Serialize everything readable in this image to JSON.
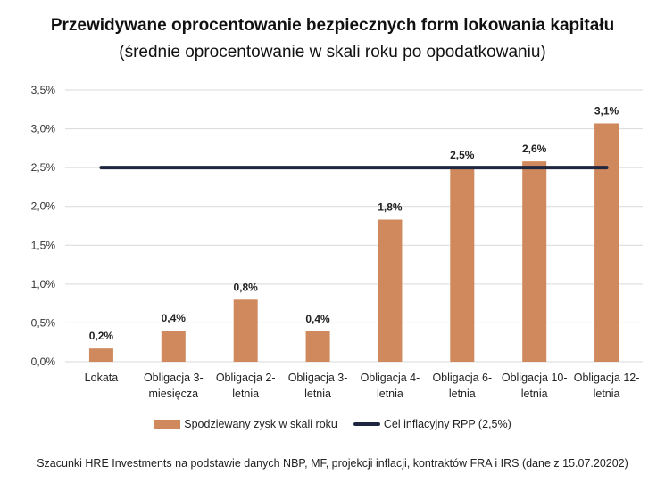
{
  "chart_data": {
    "type": "bar",
    "title": "Przewidywane oprocentowanie bezpiecznych form lokowania kapitału",
    "subtitle": "(średnie oprocentowanie w skali roku po opodatkowaniu)",
    "categories": [
      [
        "Lokata"
      ],
      [
        "Obligacja 3-",
        "miesięcza"
      ],
      [
        "Obligacja 2-",
        "letnia"
      ],
      [
        "Obligacja 3-",
        "letnia"
      ],
      [
        "Obligacja 4-",
        "letnia"
      ],
      [
        "Obligacja 6-",
        "letnia"
      ],
      [
        "Obligacja 10-",
        "letnia"
      ],
      [
        "Obligacja 12-",
        "letnia"
      ]
    ],
    "series": [
      {
        "name": "Spodziewany zysk w skali roku",
        "type": "bar",
        "color": "#D0895C",
        "values": [
          0.17,
          0.4,
          0.8,
          0.39,
          1.83,
          2.5,
          2.58,
          3.07
        ],
        "labels": [
          "0,2%",
          "0,4%",
          "0,8%",
          "0,4%",
          "1,8%",
          "2,5%",
          "2,6%",
          "3,1%"
        ]
      },
      {
        "name": "Cel inflacyjny RPP (2,5%)",
        "type": "line",
        "color": "#1f2640",
        "values": [
          2.5,
          2.5,
          2.5,
          2.5,
          2.5,
          2.5,
          2.5,
          2.5
        ]
      }
    ],
    "yticks": [
      0,
      0.5,
      1,
      1.5,
      2,
      2.5,
      3,
      3.5
    ],
    "ytick_labels": [
      "0,0%",
      "0,5%",
      "1,0%",
      "1,5%",
      "2,0%",
      "2,5%",
      "3,0%",
      "3,5%"
    ],
    "ylim": [
      0,
      3.5
    ],
    "grid": true,
    "legend_position": "bottom",
    "xlabel": "",
    "ylabel": ""
  },
  "footnote": "Szacunki HRE Investments na podstawie danych NBP, MF, projekcji inflacji, kontraktów FRA i IRS (dane z 15.07.20202)"
}
